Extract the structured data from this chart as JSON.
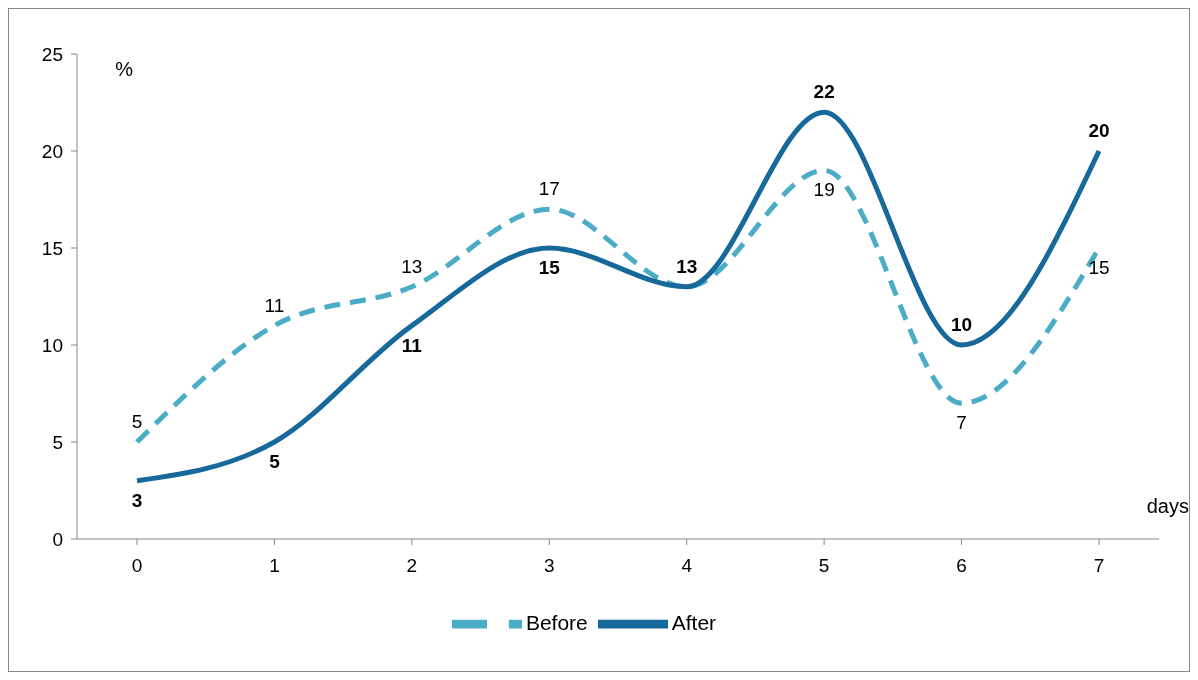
{
  "chart_data": {
    "type": "line",
    "xlabel": "days",
    "ylabel": "%",
    "categories": [
      "0",
      "1",
      "2",
      "3",
      "4",
      "5",
      "6",
      "7"
    ],
    "series": [
      {
        "name": "Before",
        "color": "#4bacc6",
        "line_style": "dashed",
        "values": [
          5,
          11,
          13,
          17,
          13,
          19,
          7,
          15
        ],
        "value_labels": [
          "5",
          "11",
          "13",
          "17",
          null,
          "19",
          "7",
          "15"
        ]
      },
      {
        "name": "After",
        "color": "#17699b",
        "line_style": "solid",
        "values": [
          3,
          5,
          11,
          15,
          13,
          22,
          10,
          20
        ],
        "value_labels": [
          "3",
          "5",
          "11",
          "15",
          "13",
          "22",
          "10",
          "20"
        ]
      }
    ],
    "ylim": [
      0,
      25
    ],
    "yticks": [
      0,
      5,
      10,
      15,
      20,
      25
    ],
    "grid": false,
    "legend": "bottom",
    "marker": "none"
  }
}
